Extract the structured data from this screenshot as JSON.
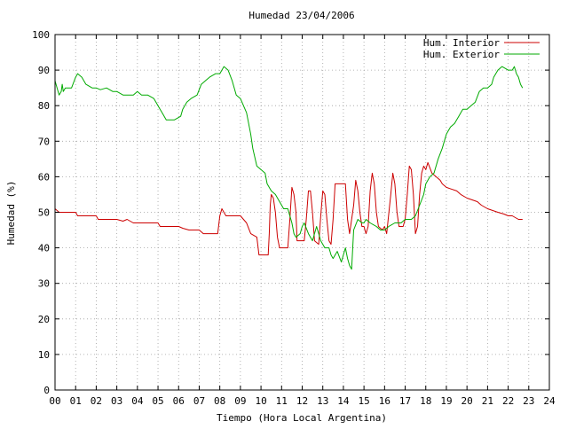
{
  "chart_data": {
    "type": "line",
    "title": "Humedad 23/04/2006",
    "xlabel": "Tiempo (Hora Local Argentina)",
    "ylabel": "Humedad (%)",
    "xlim": [
      0,
      24
    ],
    "ylim": [
      0,
      100
    ],
    "x_ticks": [
      "00",
      "01",
      "02",
      "03",
      "04",
      "05",
      "06",
      "07",
      "08",
      "09",
      "10",
      "11",
      "12",
      "13",
      "14",
      "15",
      "16",
      "17",
      "18",
      "19",
      "20",
      "21",
      "22",
      "23",
      "24"
    ],
    "y_ticks": [
      0,
      10,
      20,
      30,
      40,
      50,
      60,
      70,
      80,
      90,
      100
    ],
    "grid": true,
    "legend_position": "top-right",
    "series": [
      {
        "name": "Hum. Interior",
        "color": "#cc0000",
        "points": [
          [
            0.0,
            51
          ],
          [
            0.2,
            50
          ],
          [
            0.5,
            50
          ],
          [
            1.0,
            50
          ],
          [
            1.1,
            49
          ],
          [
            2.0,
            49
          ],
          [
            2.1,
            48
          ],
          [
            3.0,
            48
          ],
          [
            3.3,
            47.5
          ],
          [
            3.5,
            48
          ],
          [
            3.8,
            47
          ],
          [
            4.0,
            47
          ],
          [
            4.2,
            47
          ],
          [
            5.0,
            47
          ],
          [
            5.1,
            46
          ],
          [
            6.0,
            46
          ],
          [
            6.2,
            45.5
          ],
          [
            6.5,
            45
          ],
          [
            7.0,
            45
          ],
          [
            7.2,
            44
          ],
          [
            7.9,
            44
          ],
          [
            8.0,
            49
          ],
          [
            8.1,
            51
          ],
          [
            8.3,
            49
          ],
          [
            9.0,
            49
          ],
          [
            9.3,
            47
          ],
          [
            9.5,
            44
          ],
          [
            9.8,
            43
          ],
          [
            9.9,
            38
          ],
          [
            10.0,
            38
          ],
          [
            10.2,
            38
          ],
          [
            10.35,
            38
          ],
          [
            10.4,
            44
          ],
          [
            10.45,
            52
          ],
          [
            10.5,
            55
          ],
          [
            10.6,
            54
          ],
          [
            10.7,
            50
          ],
          [
            10.8,
            43
          ],
          [
            10.9,
            40
          ],
          [
            11.0,
            40
          ],
          [
            11.3,
            40
          ],
          [
            11.4,
            48
          ],
          [
            11.5,
            57
          ],
          [
            11.6,
            55
          ],
          [
            11.7,
            50
          ],
          [
            11.75,
            42
          ],
          [
            12.0,
            42
          ],
          [
            12.1,
            42
          ],
          [
            12.2,
            48
          ],
          [
            12.3,
            56
          ],
          [
            12.4,
            56
          ],
          [
            12.5,
            50
          ],
          [
            12.6,
            42
          ],
          [
            12.8,
            41
          ],
          [
            12.9,
            49
          ],
          [
            13.0,
            56
          ],
          [
            13.1,
            55
          ],
          [
            13.2,
            48
          ],
          [
            13.3,
            42
          ],
          [
            13.4,
            41
          ],
          [
            13.5,
            48
          ],
          [
            13.6,
            58
          ],
          [
            14.0,
            58
          ],
          [
            14.1,
            58
          ],
          [
            14.2,
            48
          ],
          [
            14.3,
            44
          ],
          [
            14.5,
            52
          ],
          [
            14.6,
            59
          ],
          [
            14.7,
            56
          ],
          [
            14.8,
            50
          ],
          [
            14.9,
            46
          ],
          [
            15.0,
            46
          ],
          [
            15.1,
            44
          ],
          [
            15.2,
            46
          ],
          [
            15.3,
            56
          ],
          [
            15.4,
            61
          ],
          [
            15.5,
            58
          ],
          [
            15.6,
            50
          ],
          [
            15.7,
            46
          ],
          [
            15.9,
            45
          ],
          [
            16.0,
            46
          ],
          [
            16.1,
            44
          ],
          [
            16.3,
            55
          ],
          [
            16.4,
            61
          ],
          [
            16.5,
            58
          ],
          [
            16.6,
            50
          ],
          [
            16.7,
            46
          ],
          [
            16.9,
            46
          ],
          [
            17.0,
            48
          ],
          [
            17.1,
            55
          ],
          [
            17.2,
            63
          ],
          [
            17.3,
            62
          ],
          [
            17.4,
            55
          ],
          [
            17.5,
            44
          ],
          [
            17.6,
            46
          ],
          [
            17.7,
            55
          ],
          [
            17.8,
            61
          ],
          [
            17.9,
            63
          ],
          [
            18.0,
            62
          ],
          [
            18.1,
            64
          ],
          [
            18.3,
            61
          ],
          [
            18.5,
            60
          ],
          [
            18.7,
            59
          ],
          [
            18.8,
            58
          ],
          [
            19.0,
            57
          ],
          [
            19.5,
            56
          ],
          [
            19.7,
            55
          ],
          [
            20.0,
            54
          ],
          [
            20.5,
            53
          ],
          [
            20.7,
            52
          ],
          [
            21.0,
            51
          ],
          [
            21.5,
            50
          ],
          [
            21.8,
            49.5
          ],
          [
            22.0,
            49
          ],
          [
            22.2,
            49
          ],
          [
            22.5,
            48
          ],
          [
            22.7,
            48
          ]
        ]
      },
      {
        "name": "Hum. Exterior",
        "color": "#00aa00",
        "points": [
          [
            0.0,
            87
          ],
          [
            0.1,
            85
          ],
          [
            0.2,
            83
          ],
          [
            0.3,
            84
          ],
          [
            0.35,
            86
          ],
          [
            0.4,
            84
          ],
          [
            0.5,
            85
          ],
          [
            0.6,
            85
          ],
          [
            0.8,
            85
          ],
          [
            1.0,
            88
          ],
          [
            1.1,
            89
          ],
          [
            1.3,
            88
          ],
          [
            1.5,
            86
          ],
          [
            1.8,
            85
          ],
          [
            2.0,
            85
          ],
          [
            2.2,
            84.5
          ],
          [
            2.5,
            85
          ],
          [
            2.8,
            84
          ],
          [
            3.0,
            84
          ],
          [
            3.3,
            83
          ],
          [
            3.8,
            83
          ],
          [
            4.0,
            84
          ],
          [
            4.2,
            83
          ],
          [
            4.5,
            83
          ],
          [
            4.8,
            82
          ],
          [
            5.0,
            80
          ],
          [
            5.2,
            78
          ],
          [
            5.4,
            76
          ],
          [
            5.8,
            76
          ],
          [
            6.1,
            77
          ],
          [
            6.2,
            79
          ],
          [
            6.4,
            81
          ],
          [
            6.6,
            82
          ],
          [
            6.9,
            83
          ],
          [
            7.1,
            86
          ],
          [
            7.3,
            87
          ],
          [
            7.5,
            88
          ],
          [
            7.8,
            89
          ],
          [
            8.0,
            89
          ],
          [
            8.2,
            91
          ],
          [
            8.4,
            90
          ],
          [
            8.6,
            87
          ],
          [
            8.8,
            83
          ],
          [
            9.0,
            82
          ],
          [
            9.3,
            78
          ],
          [
            9.5,
            72
          ],
          [
            9.6,
            68
          ],
          [
            9.8,
            63
          ],
          [
            10.0,
            62
          ],
          [
            10.2,
            61
          ],
          [
            10.3,
            58
          ],
          [
            10.5,
            56
          ],
          [
            10.7,
            55
          ],
          [
            10.9,
            53
          ],
          [
            11.1,
            51
          ],
          [
            11.3,
            51
          ],
          [
            11.4,
            49
          ],
          [
            11.5,
            47
          ],
          [
            11.6,
            44
          ],
          [
            11.7,
            43
          ],
          [
            11.9,
            44
          ],
          [
            12.0,
            46
          ],
          [
            12.1,
            47
          ],
          [
            12.3,
            44
          ],
          [
            12.5,
            42
          ],
          [
            12.7,
            46
          ],
          [
            12.8,
            44
          ],
          [
            12.9,
            42
          ],
          [
            13.1,
            40
          ],
          [
            13.3,
            40
          ],
          [
            13.4,
            38
          ],
          [
            13.5,
            37
          ],
          [
            13.7,
            39
          ],
          [
            13.9,
            36
          ],
          [
            14.1,
            40
          ],
          [
            14.2,
            37
          ],
          [
            14.3,
            35
          ],
          [
            14.4,
            34
          ],
          [
            14.5,
            45
          ],
          [
            14.7,
            48
          ],
          [
            14.9,
            47
          ],
          [
            15.0,
            47
          ],
          [
            15.1,
            48
          ],
          [
            15.3,
            47
          ],
          [
            15.6,
            46
          ],
          [
            15.8,
            45
          ],
          [
            16.0,
            45
          ],
          [
            16.2,
            46
          ],
          [
            16.5,
            47
          ],
          [
            16.8,
            47
          ],
          [
            17.0,
            48
          ],
          [
            17.3,
            48
          ],
          [
            17.5,
            49
          ],
          [
            17.7,
            52
          ],
          [
            17.9,
            55
          ],
          [
            18.0,
            58
          ],
          [
            18.2,
            60
          ],
          [
            18.4,
            61
          ],
          [
            18.6,
            65
          ],
          [
            18.8,
            68
          ],
          [
            19.0,
            72
          ],
          [
            19.2,
            74
          ],
          [
            19.4,
            75
          ],
          [
            19.6,
            77
          ],
          [
            19.8,
            79
          ],
          [
            20.0,
            79
          ],
          [
            20.2,
            80
          ],
          [
            20.4,
            81
          ],
          [
            20.6,
            84
          ],
          [
            20.8,
            85
          ],
          [
            21.0,
            85
          ],
          [
            21.2,
            86
          ],
          [
            21.3,
            88
          ],
          [
            21.5,
            90
          ],
          [
            21.7,
            91
          ],
          [
            22.0,
            90
          ],
          [
            22.2,
            90
          ],
          [
            22.3,
            91
          ],
          [
            22.4,
            89
          ],
          [
            22.5,
            88
          ],
          [
            22.6,
            86
          ],
          [
            22.7,
            85
          ]
        ]
      }
    ]
  }
}
